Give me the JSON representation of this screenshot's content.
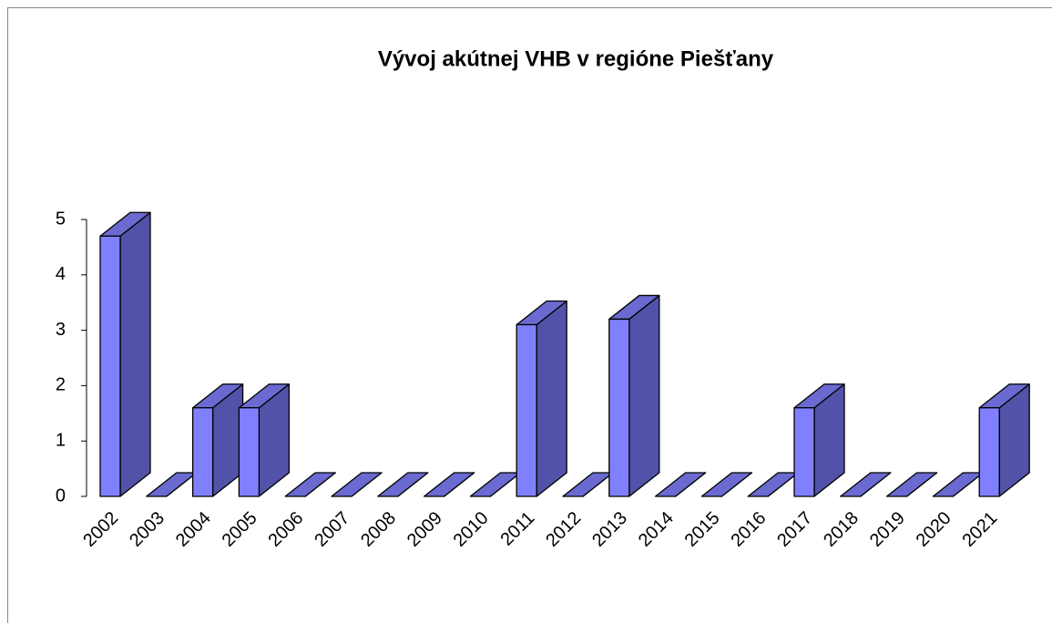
{
  "chart_data": {
    "type": "bar3d",
    "title": "Vývoj akútnej VHB v regióne Piešťany",
    "categories": [
      "2002",
      "2003",
      "2004",
      "2005",
      "2006",
      "2007",
      "2008",
      "2009",
      "2010",
      "2011",
      "2012",
      "2013",
      "2014",
      "2015",
      "2016",
      "2017",
      "2018",
      "2019",
      "2020",
      "2021"
    ],
    "values": [
      4.7,
      0,
      1.6,
      1.6,
      0,
      0,
      0,
      0,
      0,
      3.1,
      0,
      3.2,
      0,
      0,
      0,
      1.6,
      0,
      0,
      0,
      1.6
    ],
    "color": "#8080ff",
    "ylim": [
      0,
      5
    ],
    "yticks": [
      0,
      1,
      2,
      3,
      4,
      5
    ],
    "grid": false
  }
}
